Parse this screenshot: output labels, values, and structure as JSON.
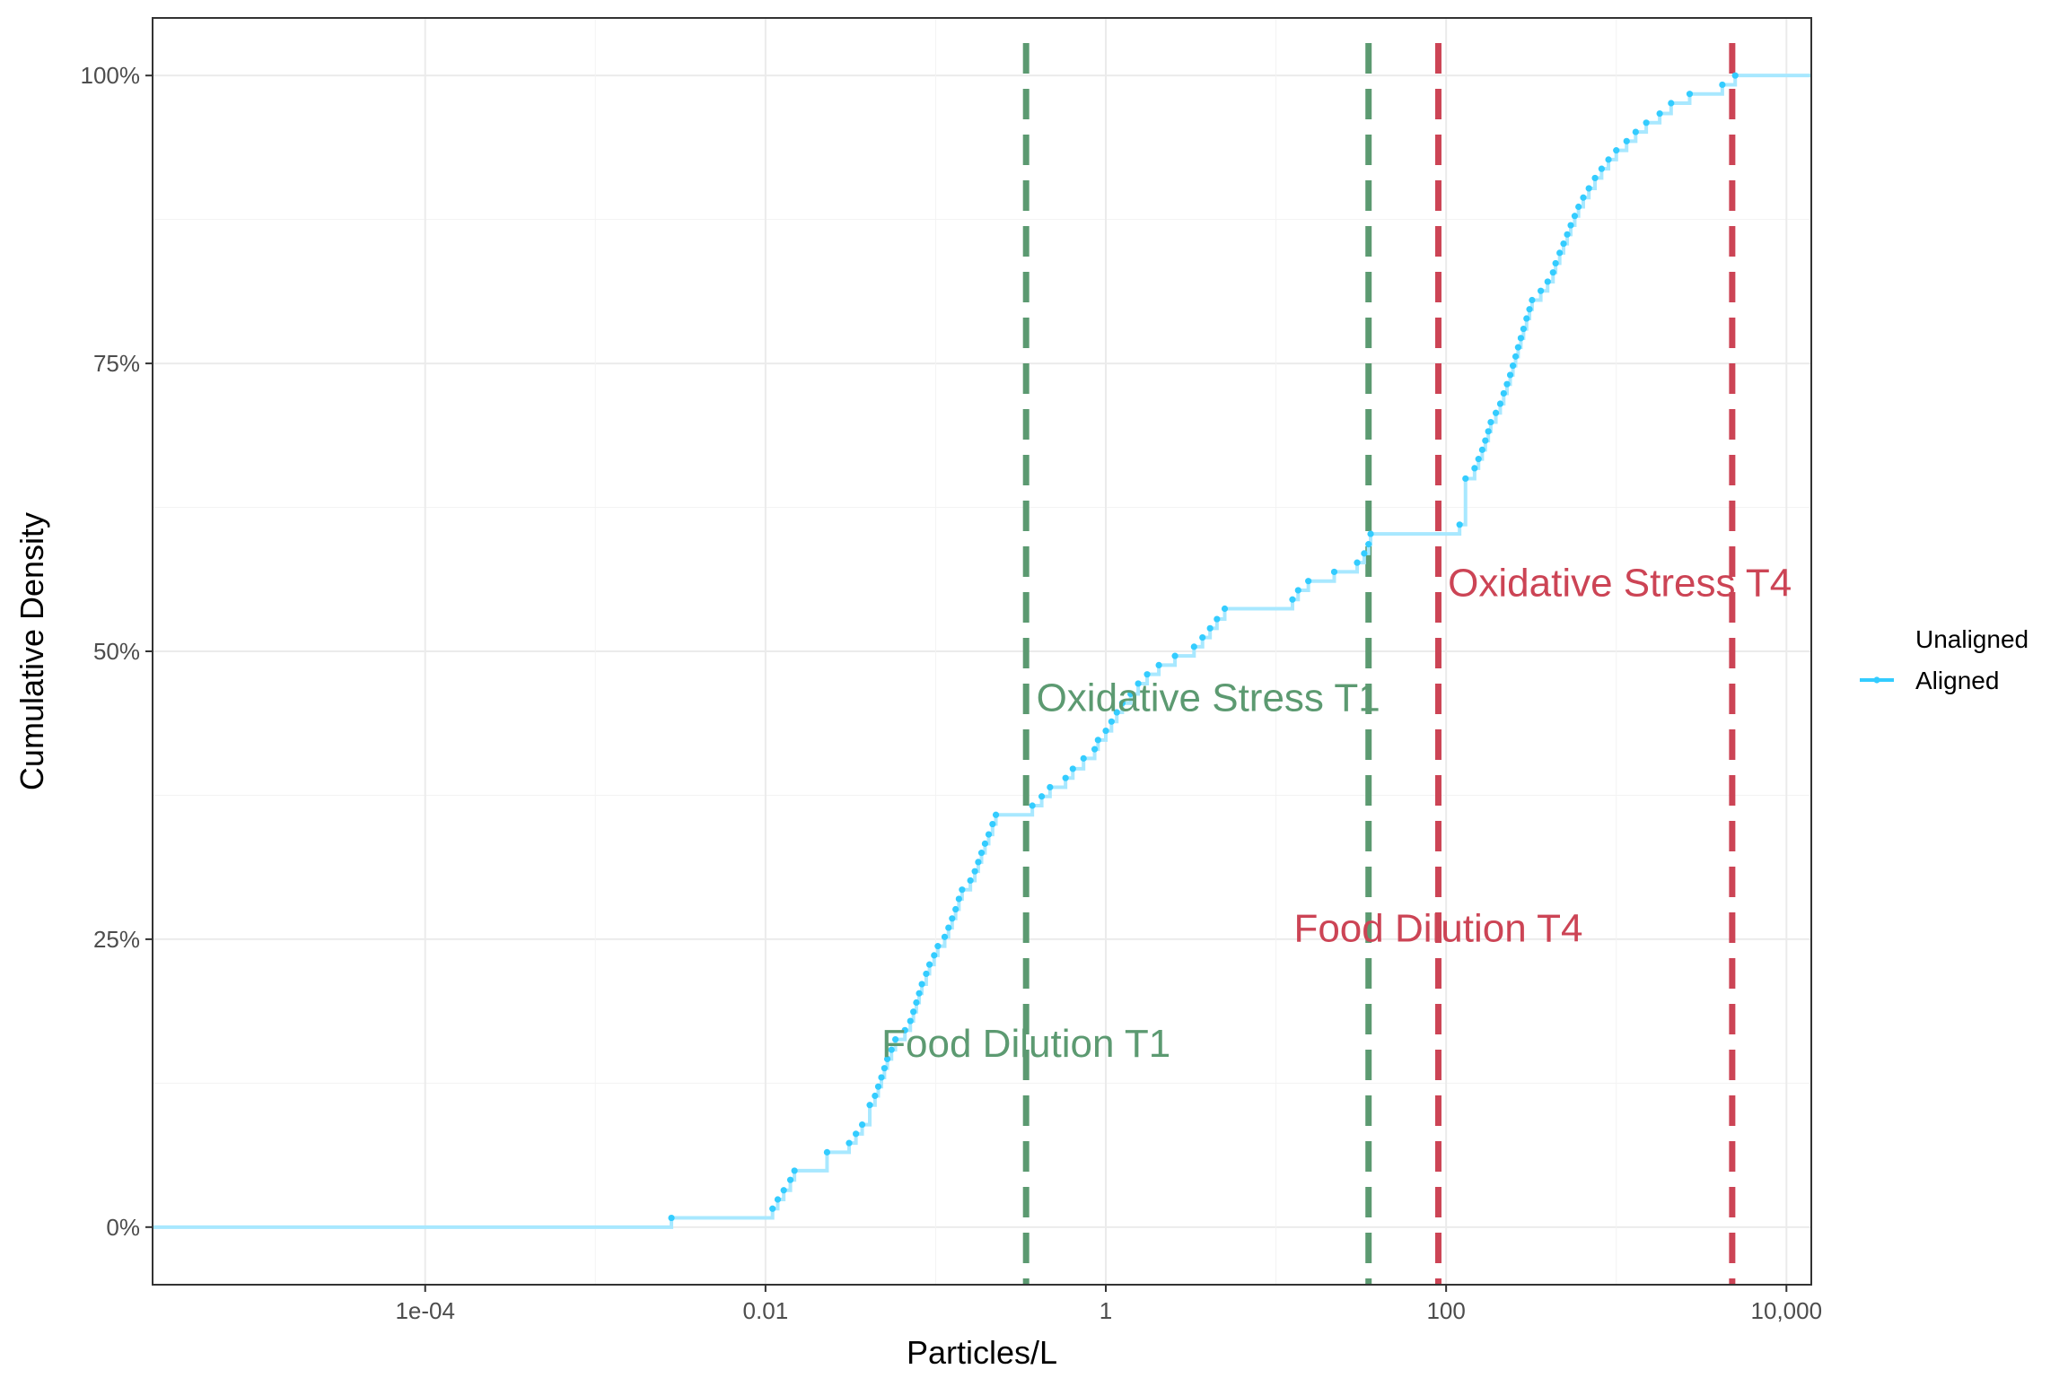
{
  "chart_data": {
    "type": "line",
    "subtype": "ecdf-step",
    "title": "",
    "xlabel": "Particles/L",
    "ylabel": "Cumulative Density",
    "x_scale": "log10",
    "xlim": [
      2.5e-06,
      14000
    ],
    "ylim": [
      -0.05,
      1.05
    ],
    "x_ticks": [
      {
        "value": 0.0001,
        "label": "1e-04"
      },
      {
        "value": 0.01,
        "label": "0.01"
      },
      {
        "value": 1,
        "label": "1"
      },
      {
        "value": 100,
        "label": "100"
      },
      {
        "value": 10000,
        "label": "10,000"
      }
    ],
    "y_ticks": [
      {
        "value": 0,
        "label": "0%"
      },
      {
        "value": 0.25,
        "label": "25%"
      },
      {
        "value": 0.5,
        "label": "50%"
      },
      {
        "value": 0.75,
        "label": "75%"
      },
      {
        "value": 1,
        "label": "100%"
      }
    ],
    "grid": true,
    "legend": {
      "position": "right",
      "entries": [
        {
          "label": "Unaligned",
          "color": "#ffffff"
        },
        {
          "label": "Aligned",
          "color": "#33ccff"
        }
      ]
    },
    "series": [
      {
        "name": "Aligned",
        "color": "#33ccff",
        "points": [
          [
            0.0028,
            0.008
          ],
          [
            0.011,
            0.016
          ],
          [
            0.0118,
            0.024
          ],
          [
            0.0128,
            0.032
          ],
          [
            0.014,
            0.041
          ],
          [
            0.0148,
            0.049
          ],
          [
            0.023,
            0.065
          ],
          [
            0.031,
            0.073
          ],
          [
            0.034,
            0.081
          ],
          [
            0.037,
            0.089
          ],
          [
            0.041,
            0.106
          ],
          [
            0.044,
            0.114
          ],
          [
            0.046,
            0.122
          ],
          [
            0.048,
            0.13
          ],
          [
            0.05,
            0.138
          ],
          [
            0.052,
            0.146
          ],
          [
            0.055,
            0.154
          ],
          [
            0.058,
            0.163
          ],
          [
            0.066,
            0.171
          ],
          [
            0.071,
            0.179
          ],
          [
            0.074,
            0.187
          ],
          [
            0.077,
            0.195
          ],
          [
            0.08,
            0.203
          ],
          [
            0.083,
            0.211
          ],
          [
            0.088,
            0.22
          ],
          [
            0.092,
            0.228
          ],
          [
            0.098,
            0.236
          ],
          [
            0.103,
            0.244
          ],
          [
            0.113,
            0.252
          ],
          [
            0.119,
            0.26
          ],
          [
            0.125,
            0.268
          ],
          [
            0.131,
            0.276
          ],
          [
            0.137,
            0.285
          ],
          [
            0.143,
            0.293
          ],
          [
            0.16,
            0.301
          ],
          [
            0.17,
            0.309
          ],
          [
            0.178,
            0.317
          ],
          [
            0.186,
            0.325
          ],
          [
            0.195,
            0.333
          ],
          [
            0.205,
            0.341
          ],
          [
            0.216,
            0.35
          ],
          [
            0.226,
            0.358
          ],
          [
            0.37,
            0.366
          ],
          [
            0.42,
            0.374
          ],
          [
            0.47,
            0.382
          ],
          [
            0.58,
            0.39
          ],
          [
            0.64,
            0.398
          ],
          [
            0.74,
            0.407
          ],
          [
            0.86,
            0.415
          ],
          [
            0.9,
            0.423
          ],
          [
            1.0,
            0.431
          ],
          [
            1.08,
            0.439
          ],
          [
            1.16,
            0.447
          ],
          [
            1.25,
            0.455
          ],
          [
            1.4,
            0.463
          ],
          [
            1.55,
            0.472
          ],
          [
            1.75,
            0.48
          ],
          [
            2.05,
            0.488
          ],
          [
            2.55,
            0.496
          ],
          [
            3.3,
            0.504
          ],
          [
            3.7,
            0.512
          ],
          [
            4.1,
            0.52
          ],
          [
            4.5,
            0.528
          ],
          [
            5.0,
            0.537
          ],
          [
            12.5,
            0.545
          ],
          [
            13.5,
            0.553
          ],
          [
            15.5,
            0.561
          ],
          [
            22.0,
            0.569
          ],
          [
            30.0,
            0.577
          ],
          [
            33.0,
            0.585
          ],
          [
            35.0,
            0.593
          ],
          [
            36.0,
            0.602
          ],
          [
            120,
            0.61
          ],
          [
            130,
            0.65
          ],
          [
            147,
            0.659
          ],
          [
            155,
            0.667
          ],
          [
            163,
            0.675
          ],
          [
            170,
            0.683
          ],
          [
            177,
            0.691
          ],
          [
            183,
            0.699
          ],
          [
            196,
            0.707
          ],
          [
            208,
            0.715
          ],
          [
            218,
            0.724
          ],
          [
            228,
            0.732
          ],
          [
            238,
            0.74
          ],
          [
            247,
            0.748
          ],
          [
            256,
            0.756
          ],
          [
            265,
            0.764
          ],
          [
            275,
            0.772
          ],
          [
            285,
            0.78
          ],
          [
            297,
            0.789
          ],
          [
            309,
            0.797
          ],
          [
            320,
            0.805
          ],
          [
            360,
            0.813
          ],
          [
            395,
            0.821
          ],
          [
            425,
            0.829
          ],
          [
            440,
            0.837
          ],
          [
            465,
            0.846
          ],
          [
            490,
            0.854
          ],
          [
            515,
            0.862
          ],
          [
            540,
            0.87
          ],
          [
            570,
            0.878
          ],
          [
            600,
            0.886
          ],
          [
            640,
            0.894
          ],
          [
            690,
            0.902
          ],
          [
            750,
            0.911
          ],
          [
            820,
            0.919
          ],
          [
            900,
            0.927
          ],
          [
            1000,
            0.935
          ],
          [
            1150,
            0.943
          ],
          [
            1300,
            0.951
          ],
          [
            1500,
            0.959
          ],
          [
            1800,
            0.967
          ],
          [
            2100,
            0.976
          ],
          [
            2700,
            0.984
          ],
          [
            4200,
            0.992
          ],
          [
            5000,
            1.0
          ]
        ]
      }
    ],
    "reference_lines": [
      {
        "x": 0.34,
        "color": "#5c9a71",
        "label": "Food Dilution T1",
        "label_x": 0.34,
        "label_y": 0.148
      },
      {
        "x": 35,
        "color": "#5c9a71",
        "label": "Oxidative Stress T1",
        "label_x": 4.0,
        "label_y": 0.448
      },
      {
        "x": 90,
        "color": "#cc4455",
        "label": "Food Dilution T4",
        "label_x": 90,
        "label_y": 0.248
      },
      {
        "x": 4800,
        "color": "#cc4455",
        "label": "Oxidative Stress T4",
        "label_x": 1050,
        "label_y": 0.548
      }
    ]
  }
}
